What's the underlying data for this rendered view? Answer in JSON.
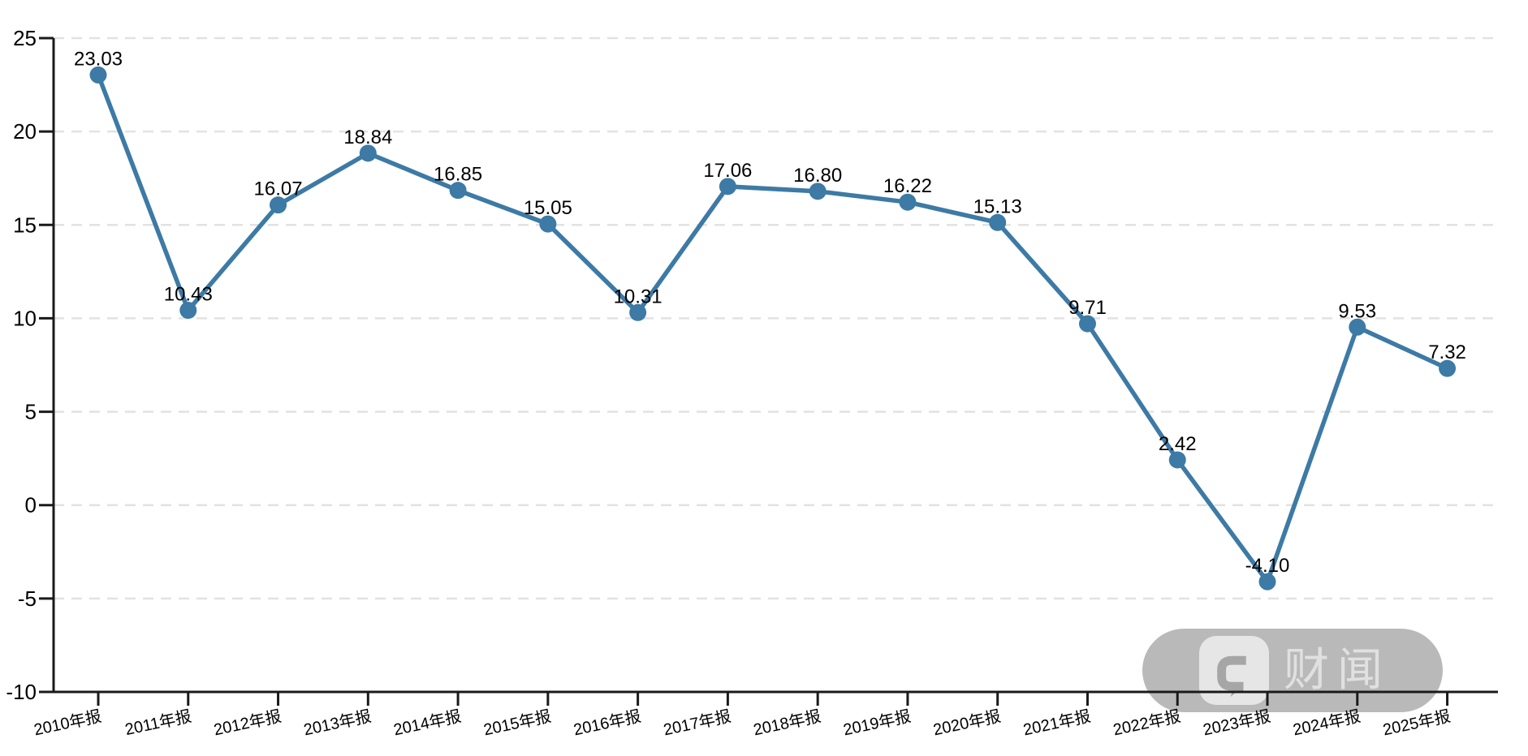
{
  "chart_data": {
    "type": "line",
    "title": "",
    "xlabel": "",
    "ylabel": "",
    "categories": [
      "2010年报",
      "2011年报",
      "2012年报",
      "2013年报",
      "2014年报",
      "2015年报",
      "2016年报",
      "2017年报",
      "2018年报",
      "2019年报",
      "2020年报",
      "2021年报",
      "2022年报",
      "2023年报",
      "2024年报",
      "2025年报"
    ],
    "values": [
      23.03,
      10.43,
      16.07,
      18.84,
      16.85,
      15.05,
      10.31,
      17.06,
      16.8,
      16.22,
      15.13,
      9.71,
      2.42,
      -4.1,
      9.53,
      7.32
    ],
    "point_labels": [
      "23.03",
      "10.43",
      "16.07",
      "18.84",
      "16.85",
      "15.05",
      "10.31",
      "17.06",
      "16.80",
      "16.22",
      "15.13",
      "9.71",
      "2.42",
      "-4.10",
      "9.53",
      "7.32"
    ],
    "ylim": [
      -10,
      25
    ],
    "yticks": [
      25,
      20,
      15,
      10,
      5,
      0,
      -5,
      -10
    ],
    "grid": true,
    "legend_position": "none",
    "line_color": "#3d7aa5",
    "marker_color": "#3d7aa5",
    "gridline_color": "#e2e2e2",
    "axis_color": "#1a1a1a",
    "text_color": "#000000"
  },
  "watermark": {
    "text": "财闻",
    "icon": "speech-bubble-c-logo"
  }
}
